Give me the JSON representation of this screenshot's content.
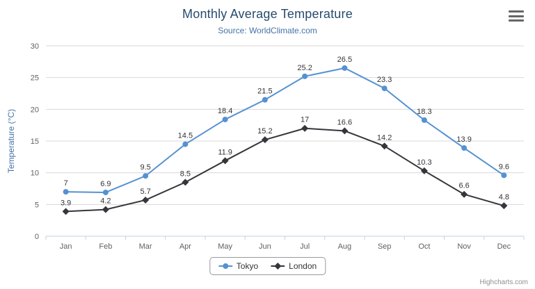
{
  "chart_data": {
    "type": "line",
    "title": "Monthly Average Temperature",
    "subtitle": "Source: WorldClimate.com",
    "xlabel": "",
    "ylabel": "Temperature (°C)",
    "categories": [
      "Jan",
      "Feb",
      "Mar",
      "Apr",
      "May",
      "Jun",
      "Jul",
      "Aug",
      "Sep",
      "Oct",
      "Nov",
      "Dec"
    ],
    "ylim": [
      0,
      30
    ],
    "yticks": [
      0,
      5,
      10,
      15,
      20,
      25,
      30
    ],
    "grid": true,
    "data_labels": true,
    "legend_position": "bottom-center",
    "series": [
      {
        "name": "Tokyo",
        "color": "#5591d2",
        "marker": "circle",
        "values": [
          7,
          6.9,
          9.5,
          14.5,
          18.4,
          21.5,
          25.2,
          26.5,
          23.3,
          18.3,
          13.9,
          9.6
        ]
      },
      {
        "name": "London",
        "color": "#35353b",
        "marker": "diamond",
        "values": [
          3.9,
          4.2,
          5.7,
          8.5,
          11.9,
          15.2,
          17,
          16.6,
          14.2,
          10.3,
          6.6,
          4.8
        ]
      }
    ]
  },
  "credits": "Highcharts.com",
  "colors": {
    "title": "#274b6d",
    "subtitle": "#4572a7",
    "axis_label": "#606060",
    "data_label": "#333333",
    "grid": "#d8d8d8",
    "axis_line": "#c0d0e0"
  }
}
